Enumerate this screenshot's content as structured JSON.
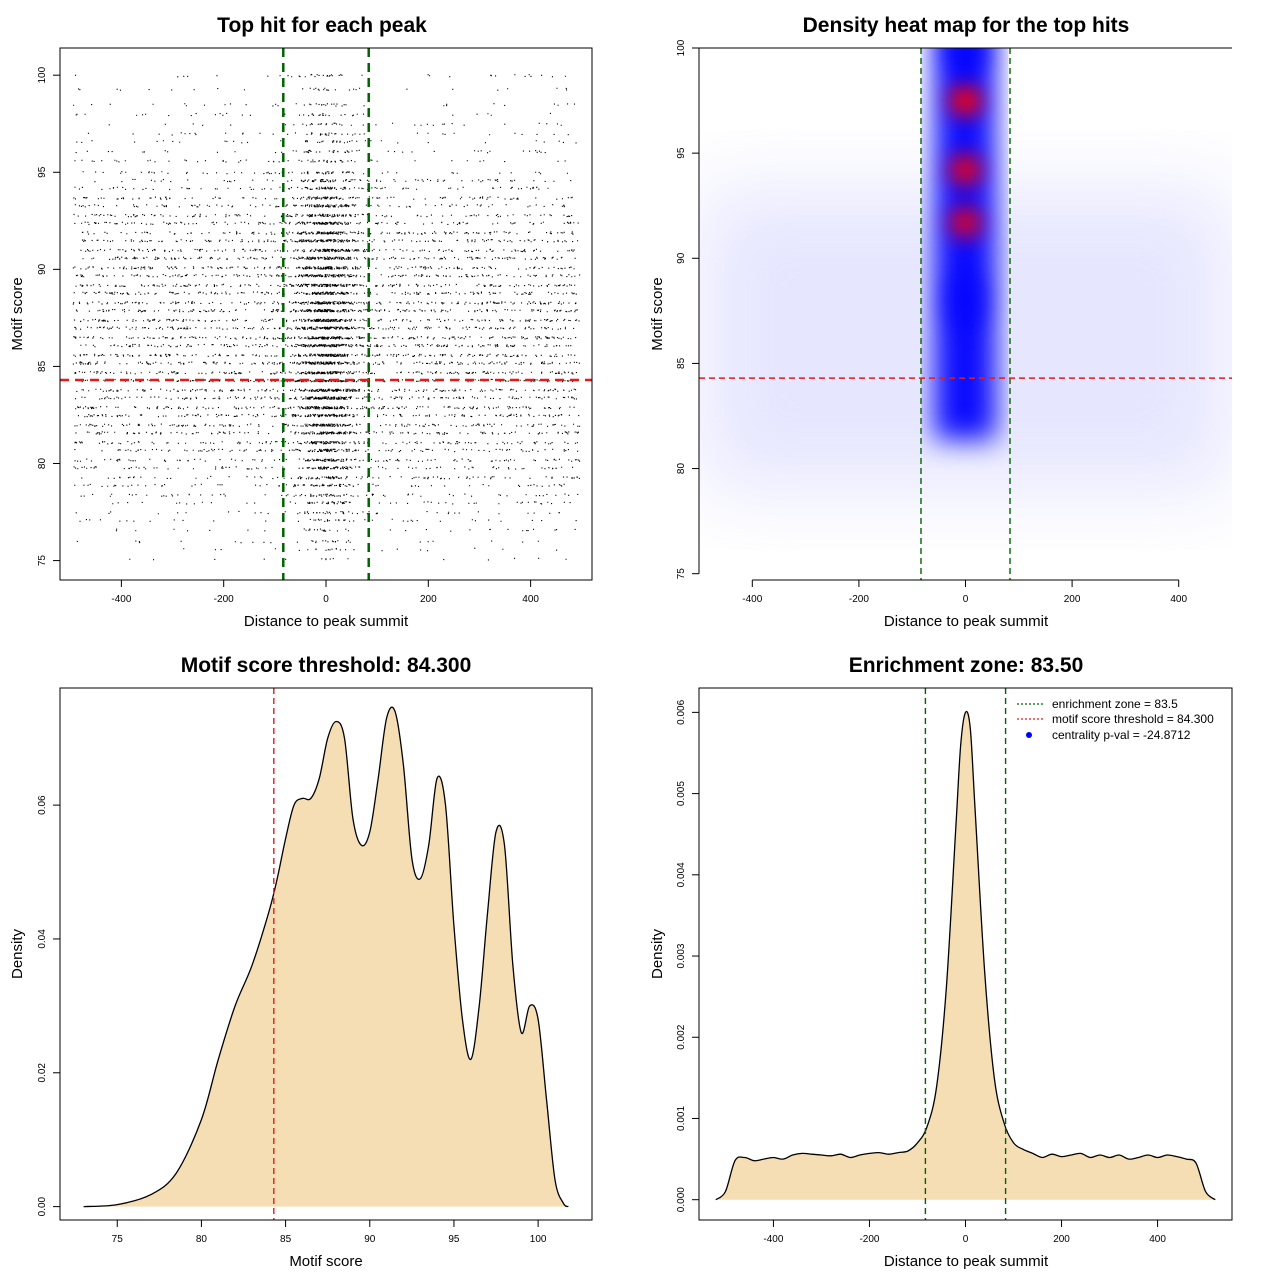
{
  "chart_data": [
    {
      "id": "scatter",
      "type": "scatter",
      "title": "Top hit for each peak",
      "xlabel": "Distance to peak summit",
      "ylabel": "Motif score",
      "xlim": [
        -520,
        520
      ],
      "ylim": [
        74,
        101.4
      ],
      "xticks": [
        -400,
        -200,
        0,
        200,
        400
      ],
      "yticks": [
        75,
        80,
        85,
        90,
        95,
        100
      ],
      "vlines": [
        -83.5,
        83.5
      ],
      "hline": 84.3,
      "colors": {
        "points": "#000000",
        "enrichment": "#006400",
        "threshold": "#e41a1c"
      },
      "distribution": {
        "x_range": [
          -495,
          495
        ],
        "score_levels": [
          75.1,
          75.6,
          76.0,
          76.6,
          77.1,
          77.5,
          78.0,
          78.4,
          78.9,
          79.3,
          79.8,
          80.2,
          80.7,
          81.1,
          81.6,
          82.0,
          82.5,
          82.9,
          83.4,
          83.8,
          84.3,
          84.7,
          85.2,
          85.6,
          86.1,
          86.5,
          87.0,
          87.4,
          87.9,
          88.3,
          88.8,
          89.2,
          89.7,
          90.1,
          90.6,
          91.0,
          91.5,
          91.9,
          92.4,
          92.8,
          93.3,
          93.7,
          94.2,
          94.6,
          95.0,
          95.6,
          96.1,
          96.6,
          97.0,
          97.5,
          98.0,
          98.5,
          99.3,
          100.0
        ],
        "level_weights": [
          0.2,
          0.3,
          0.4,
          0.5,
          0.6,
          0.7,
          0.9,
          1.1,
          1.3,
          1.5,
          1.8,
          2.0,
          2.2,
          2.4,
          2.6,
          2.8,
          3.0,
          3.1,
          3.2,
          3.3,
          3.4,
          3.4,
          3.5,
          3.5,
          3.5,
          3.5,
          3.5,
          3.5,
          3.5,
          3.4,
          3.4,
          3.3,
          3.2,
          3.2,
          3.1,
          3.0,
          2.9,
          2.7,
          2.5,
          2.2,
          2.0,
          1.8,
          1.5,
          1.3,
          1.0,
          0.8,
          0.7,
          0.6,
          0.6,
          0.5,
          0.5,
          0.5,
          0.4,
          0.5
        ],
        "total_points": 9000,
        "central_fraction": 0.38,
        "central_sd": 30
      }
    },
    {
      "id": "heatmap",
      "type": "heatmap",
      "title": "Density heat map for the top hits",
      "xlabel": "Distance to peak summit",
      "ylabel": "Motif score",
      "xlim": [
        -500,
        500
      ],
      "ylim": [
        74.7,
        100
      ],
      "xticks": [
        -400,
        -200,
        0,
        200,
        400
      ],
      "yticks": [
        75,
        80,
        85,
        90,
        95,
        100
      ],
      "vlines": [
        -83.5,
        83.5
      ],
      "hline": 84.3,
      "hotspots": [
        {
          "x": 0,
          "y": 97.5,
          "intensity": 1.0
        },
        {
          "x": 0,
          "y": 94.2,
          "intensity": 0.92
        },
        {
          "x": 0,
          "y": 91.7,
          "intensity": 0.88
        },
        {
          "x": 0,
          "y": 88.0,
          "intensity": 0.45
        },
        {
          "x": 0,
          "y": 100.0,
          "intensity": 0.5
        }
      ],
      "colors": {
        "low": "#ffffff",
        "mid": "#0000ff",
        "high": "#ff0000",
        "enrichment": "#006400",
        "threshold": "#e41a1c"
      }
    },
    {
      "id": "density_score",
      "type": "area",
      "title": "Motif score threshold: 84.300",
      "xlabel": "Motif score",
      "ylabel": "Density",
      "xlim": [
        71.6,
        103.2
      ],
      "ylim": [
        -0.002,
        0.0775
      ],
      "xticks": [
        75,
        80,
        85,
        90,
        95,
        100
      ],
      "yticks": [
        0.0,
        0.02,
        0.04,
        0.06
      ],
      "ytick_labels": [
        "0.00",
        "0.02",
        "0.04",
        "0.06"
      ],
      "vline": 84.3,
      "x": [
        73.0,
        75.0,
        77.0,
        78.5,
        80.0,
        81.0,
        82.0,
        83.0,
        84.0,
        84.5,
        85.0,
        85.5,
        86.0,
        86.5,
        87.0,
        87.5,
        88.0,
        88.5,
        89.0,
        89.5,
        90.0,
        90.5,
        91.0,
        91.5,
        92.0,
        92.5,
        93.0,
        93.5,
        94.0,
        94.5,
        95.0,
        95.5,
        96.0,
        96.5,
        97.0,
        97.5,
        98.0,
        98.5,
        99.0,
        99.5,
        100.0,
        100.5,
        101.0,
        101.5,
        101.8
      ],
      "values": [
        0.0,
        0.0003,
        0.0018,
        0.005,
        0.013,
        0.022,
        0.03,
        0.036,
        0.044,
        0.049,
        0.055,
        0.06,
        0.061,
        0.061,
        0.064,
        0.07,
        0.0725,
        0.07,
        0.058,
        0.054,
        0.056,
        0.064,
        0.073,
        0.074,
        0.066,
        0.052,
        0.049,
        0.054,
        0.064,
        0.06,
        0.042,
        0.028,
        0.022,
        0.03,
        0.044,
        0.056,
        0.054,
        0.036,
        0.026,
        0.03,
        0.028,
        0.016,
        0.004,
        0.0005,
        0.0
      ],
      "colors": {
        "fill": "#f5deb3",
        "line": "#000000",
        "threshold": "#e41a1c"
      }
    },
    {
      "id": "density_distance",
      "type": "area",
      "title": "Enrichment zone: 83.50",
      "xlabel": "Distance to peak summit",
      "ylabel": "Density",
      "xlim": [
        -555,
        555
      ],
      "ylim": [
        -0.00025,
        0.0063
      ],
      "xticks": [
        -400,
        -200,
        0,
        200,
        400
      ],
      "yticks": [
        0.0,
        0.001,
        0.002,
        0.003,
        0.004,
        0.005,
        0.006
      ],
      "ytick_labels": [
        "0.000",
        "0.001",
        "0.002",
        "0.003",
        "0.004",
        "0.005",
        "0.006"
      ],
      "vlines": [
        -83.5,
        83.5
      ],
      "x": [
        -520,
        -500,
        -480,
        -460,
        -440,
        -420,
        -400,
        -380,
        -360,
        -340,
        -320,
        -300,
        -280,
        -260,
        -240,
        -220,
        -200,
        -180,
        -160,
        -140,
        -120,
        -100,
        -80,
        -60,
        -40,
        -20,
        -10,
        0,
        10,
        20,
        40,
        60,
        80,
        100,
        120,
        140,
        160,
        180,
        200,
        220,
        240,
        260,
        280,
        300,
        320,
        340,
        360,
        380,
        400,
        420,
        440,
        460,
        480,
        500,
        520
      ],
      "values": [
        0.0,
        0.0001,
        0.00048,
        0.00052,
        0.00048,
        0.0005,
        0.00052,
        0.0005,
        0.00055,
        0.00057,
        0.00056,
        0.00055,
        0.00054,
        0.00056,
        0.00052,
        0.00055,
        0.00057,
        0.00058,
        0.00056,
        0.00058,
        0.0006,
        0.0007,
        0.0009,
        0.0014,
        0.0026,
        0.0046,
        0.0056,
        0.006,
        0.0058,
        0.0048,
        0.0028,
        0.0015,
        0.00095,
        0.0007,
        0.00062,
        0.00057,
        0.00052,
        0.00056,
        0.00053,
        0.00055,
        0.00057,
        0.00052,
        0.00055,
        0.00052,
        0.00055,
        0.0005,
        0.00052,
        0.00055,
        0.00052,
        0.00055,
        0.00053,
        0.0005,
        0.00045,
        0.0001,
        0.0
      ],
      "legend": [
        {
          "label": "enrichment zone = 83.5",
          "kind": "line",
          "color": "#006400"
        },
        {
          "label": "motif score threshold = 84.300",
          "kind": "line",
          "color": "#e41a1c"
        },
        {
          "label": "centrality p-val = -24.8712",
          "kind": "point",
          "color": "#0000ff"
        }
      ],
      "legend_position": "top-right",
      "colors": {
        "fill": "#f5deb3",
        "line": "#000000",
        "enrichment": "#006400"
      }
    }
  ]
}
